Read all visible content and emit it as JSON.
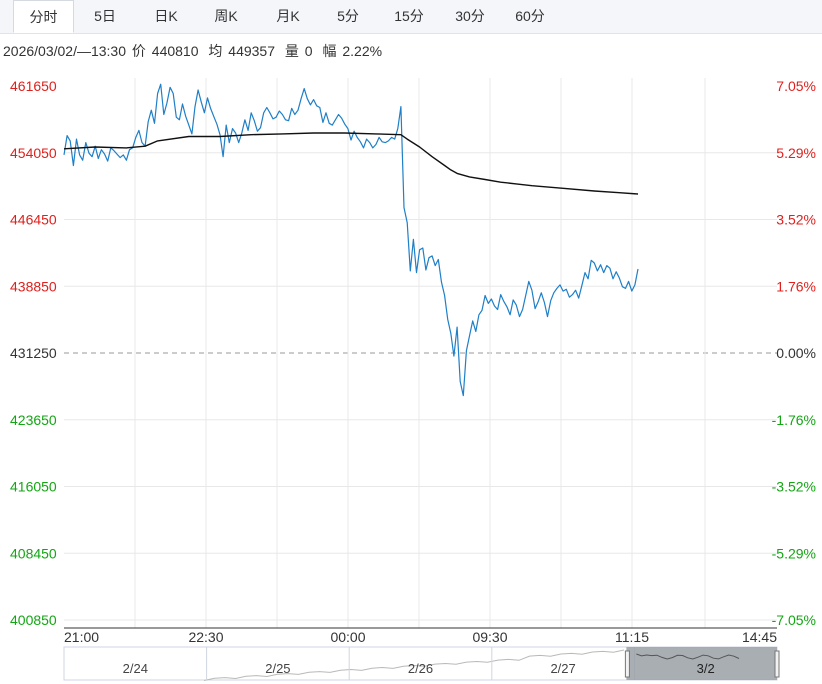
{
  "tabs": [
    "分时",
    "5日",
    "日K",
    "周K",
    "月K",
    "5分",
    "15分",
    "30分",
    "60分"
  ],
  "info": {
    "datetime": "2026/03/02/—13:30",
    "price_label": "价",
    "price": "440810",
    "avg_label": "均",
    "avg": "449357",
    "vol_label": "量",
    "vol": "0",
    "amp_label": "幅",
    "amp": "2.22%"
  },
  "colors": {
    "up": "#e0201c",
    "down": "#13a613",
    "price_line": "#1f7fc7",
    "avg_line": "#111111",
    "grid": "#e8e8e8"
  },
  "chart_data": {
    "type": "line",
    "base_price": 431250,
    "ylim": [
      400850,
      461650
    ],
    "y_ticks": [
      "461650",
      "454050",
      "446450",
      "438850",
      "431250",
      "423650",
      "416050",
      "408450",
      "400850"
    ],
    "pct_ticks": [
      "7.05%",
      "5.29%",
      "3.52%",
      "1.76%",
      "0.00%",
      "-1.76%",
      "-3.52%",
      "-5.29%",
      "-7.05%"
    ],
    "x_ticks": [
      "21:00",
      "22:30",
      "00:00",
      "09:30",
      "11:15",
      "14:45"
    ],
    "series": [
      {
        "key": "price",
        "values": [
          [
            0,
            453800
          ],
          [
            1,
            456000
          ],
          [
            2,
            455400
          ],
          [
            3,
            452600
          ],
          [
            4,
            455600
          ],
          [
            5,
            453800
          ],
          [
            6,
            453200
          ],
          [
            7,
            455200
          ],
          [
            8,
            454000
          ],
          [
            9,
            453600
          ],
          [
            10,
            454800
          ],
          [
            11,
            453400
          ],
          [
            12,
            454400
          ],
          [
            13,
            453900
          ],
          [
            14,
            453100
          ],
          [
            15,
            454600
          ],
          [
            16,
            454300
          ],
          [
            17,
            453900
          ],
          [
            18,
            453500
          ],
          [
            19,
            453800
          ],
          [
            20,
            453200
          ],
          [
            21,
            454400
          ],
          [
            22,
            454600
          ],
          [
            23,
            455800
          ],
          [
            24,
            456600
          ],
          [
            25,
            455200
          ],
          [
            26,
            454800
          ],
          [
            27,
            457600
          ],
          [
            28,
            458900
          ],
          [
            29,
            457400
          ],
          [
            30,
            460800
          ],
          [
            31,
            461850
          ],
          [
            32,
            458400
          ],
          [
            33,
            459700
          ],
          [
            34,
            461500
          ],
          [
            35,
            460800
          ],
          [
            36,
            458100
          ],
          [
            37,
            457800
          ],
          [
            38,
            459600
          ],
          [
            39,
            458200
          ],
          [
            40,
            457200
          ],
          [
            41,
            456200
          ],
          [
            42,
            459300
          ],
          [
            43,
            461200
          ],
          [
            44,
            459800
          ],
          [
            45,
            458600
          ],
          [
            46,
            460300
          ],
          [
            47,
            459100
          ],
          [
            48,
            458200
          ],
          [
            49,
            457300
          ],
          [
            50,
            456100
          ],
          [
            51,
            453600
          ],
          [
            52,
            457200
          ],
          [
            53,
            455200
          ],
          [
            54,
            456800
          ],
          [
            55,
            456300
          ],
          [
            56,
            455200
          ],
          [
            57,
            456300
          ],
          [
            58,
            457800
          ],
          [
            59,
            456600
          ],
          [
            60,
            458600
          ],
          [
            61,
            457700
          ],
          [
            62,
            456500
          ],
          [
            63,
            456900
          ],
          [
            64,
            458600
          ],
          [
            65,
            459200
          ],
          [
            66,
            458600
          ],
          [
            67,
            457900
          ],
          [
            68,
            458100
          ],
          [
            69,
            458800
          ],
          [
            70,
            458400
          ],
          [
            71,
            457800
          ],
          [
            72,
            457700
          ],
          [
            73,
            459100
          ],
          [
            74,
            458400
          ],
          [
            75,
            458900
          ],
          [
            76,
            460200
          ],
          [
            77,
            461350
          ],
          [
            78,
            460200
          ],
          [
            79,
            459500
          ],
          [
            80,
            460100
          ],
          [
            81,
            459400
          ],
          [
            82,
            459200
          ],
          [
            83,
            457500
          ],
          [
            84,
            458600
          ],
          [
            85,
            457400
          ],
          [
            86,
            457200
          ],
          [
            87,
            457800
          ],
          [
            88,
            458400
          ],
          [
            89,
            458000
          ],
          [
            90,
            457300
          ],
          [
            91,
            456800
          ],
          [
            92,
            455500
          ],
          [
            93,
            456500
          ],
          [
            94,
            455800
          ],
          [
            95,
            455300
          ],
          [
            96,
            454600
          ],
          [
            97,
            455600
          ],
          [
            98,
            455200
          ],
          [
            99,
            454600
          ],
          [
            100,
            455000
          ],
          [
            101,
            455800
          ],
          [
            102,
            455300
          ],
          [
            103,
            455200
          ],
          [
            104,
            455400
          ],
          [
            105,
            455800
          ],
          [
            106,
            455600
          ],
          [
            107,
            456800
          ],
          [
            108,
            459300
          ],
          [
            109,
            447800
          ],
          [
            110,
            446100
          ],
          [
            111,
            440600
          ],
          [
            112,
            444200
          ],
          [
            113,
            440400
          ],
          [
            114,
            443000
          ],
          [
            115,
            443200
          ],
          [
            116,
            440700
          ],
          [
            117,
            442100
          ],
          [
            118,
            442300
          ],
          [
            119,
            441200
          ],
          [
            120,
            441900
          ],
          [
            121,
            439300
          ],
          [
            122,
            437800
          ],
          [
            123,
            435100
          ],
          [
            124,
            433500
          ],
          [
            125,
            430900
          ],
          [
            126,
            434200
          ],
          [
            127,
            428000
          ],
          [
            128,
            426400
          ],
          [
            129,
            431500
          ],
          [
            130,
            433200
          ],
          [
            131,
            434900
          ],
          [
            132,
            433700
          ],
          [
            133,
            435600
          ],
          [
            134,
            436100
          ],
          [
            135,
            437800
          ],
          [
            136,
            436900
          ],
          [
            137,
            437400
          ],
          [
            138,
            436600
          ],
          [
            139,
            436200
          ],
          [
            140,
            437900
          ],
          [
            141,
            437100
          ],
          [
            142,
            436500
          ],
          [
            143,
            435600
          ],
          [
            144,
            437300
          ],
          [
            145,
            436700
          ],
          [
            146,
            435400
          ],
          [
            147,
            436200
          ],
          [
            148,
            437800
          ],
          [
            149,
            439400
          ],
          [
            150,
            438400
          ],
          [
            151,
            436300
          ],
          [
            152,
            437100
          ],
          [
            153,
            438100
          ],
          [
            154,
            437000
          ],
          [
            155,
            435400
          ],
          [
            156,
            437200
          ],
          [
            157,
            438100
          ],
          [
            158,
            438600
          ],
          [
            159,
            439000
          ],
          [
            160,
            438300
          ],
          [
            161,
            438500
          ],
          [
            162,
            437600
          ],
          [
            163,
            437900
          ],
          [
            164,
            438400
          ],
          [
            165,
            437500
          ],
          [
            166,
            438900
          ],
          [
            167,
            440400
          ],
          [
            168,
            439700
          ],
          [
            169,
            441800
          ],
          [
            170,
            441500
          ],
          [
            171,
            440600
          ],
          [
            172,
            441300
          ],
          [
            173,
            440400
          ],
          [
            174,
            441200
          ],
          [
            175,
            440900
          ],
          [
            176,
            439700
          ],
          [
            177,
            440500
          ],
          [
            178,
            439800
          ],
          [
            179,
            438800
          ],
          [
            180,
            438600
          ],
          [
            181,
            439400
          ],
          [
            182,
            438300
          ],
          [
            183,
            439000
          ],
          [
            184,
            440810
          ]
        ]
      },
      {
        "key": "average",
        "values": [
          [
            0,
            454500
          ],
          [
            10,
            454700
          ],
          [
            20,
            454600
          ],
          [
            26,
            454800
          ],
          [
            30,
            455400
          ],
          [
            40,
            455900
          ],
          [
            50,
            455900
          ],
          [
            60,
            456100
          ],
          [
            70,
            456200
          ],
          [
            80,
            456300
          ],
          [
            90,
            456300
          ],
          [
            100,
            456200
          ],
          [
            108,
            456100
          ],
          [
            110,
            455600
          ],
          [
            114,
            454700
          ],
          [
            118,
            453600
          ],
          [
            122,
            452600
          ],
          [
            124,
            452100
          ],
          [
            126,
            451700
          ],
          [
            130,
            451300
          ],
          [
            135,
            451000
          ],
          [
            140,
            450700
          ],
          [
            145,
            450500
          ],
          [
            150,
            450300
          ],
          [
            160,
            450000
          ],
          [
            170,
            449700
          ],
          [
            178,
            449500
          ],
          [
            184,
            449357
          ]
        ]
      }
    ],
    "navigator": {
      "labels": [
        "2/24",
        "2/25",
        "2/26",
        "2/27",
        "3/2"
      ],
      "selected": "3/2"
    }
  }
}
